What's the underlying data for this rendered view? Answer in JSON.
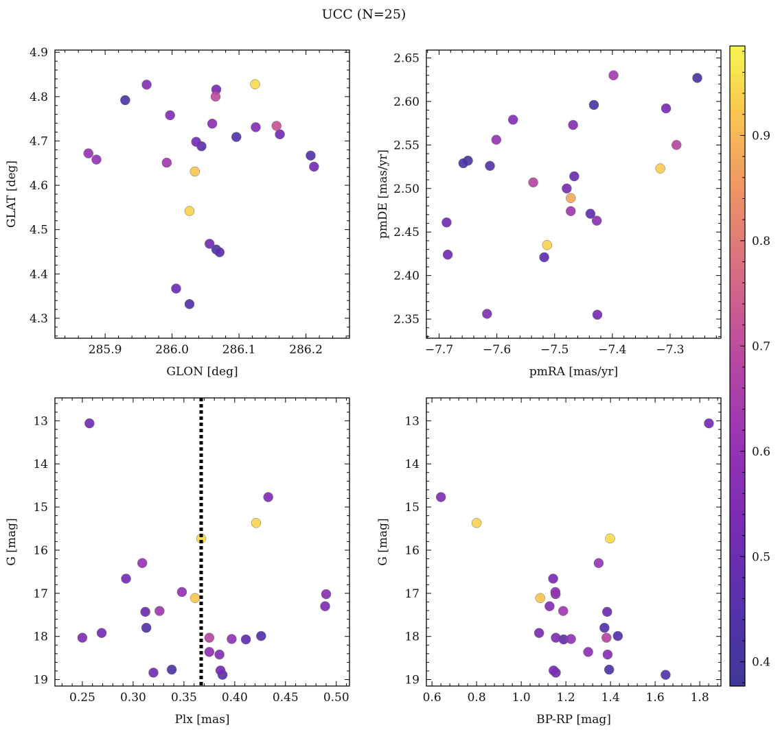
{
  "figure": {
    "title": "UCC (N=25)"
  },
  "colors": {
    "viridis_like": "plasma",
    "marker_edge": "#555555"
  },
  "chart_data": [
    {
      "type": "scatter",
      "id": "glon-glat",
      "xlabel": "GLON [deg]",
      "ylabel": "GLAT [deg]",
      "xlim": [
        285.825,
        286.265
      ],
      "ylim": [
        4.255,
        4.905
      ],
      "xticks": [
        285.9,
        286.0,
        286.1,
        286.2
      ],
      "xtick_labels": [
        "285.9",
        "286.0",
        "286.1",
        "286.2"
      ],
      "yticks": [
        4.3,
        4.4,
        4.5,
        4.6,
        4.7,
        4.8,
        4.9
      ],
      "ytick_labels": [
        "4.3",
        "4.4",
        "4.5",
        "4.6",
        "4.7",
        "4.8",
        "4.9"
      ],
      "y_inverted": false,
      "points": [
        {
          "x": 285.93,
          "y": 4.792,
          "c": 0.42
        },
        {
          "x": 285.962,
          "y": 4.827,
          "c": 0.56
        },
        {
          "x": 285.875,
          "y": 4.672,
          "c": 0.61
        },
        {
          "x": 285.887,
          "y": 4.658,
          "c": 0.61
        },
        {
          "x": 285.997,
          "y": 4.758,
          "c": 0.56
        },
        {
          "x": 285.992,
          "y": 4.651,
          "c": 0.63
        },
        {
          "x": 286.036,
          "y": 4.698,
          "c": 0.52
        },
        {
          "x": 286.044,
          "y": 4.688,
          "c": 0.47
        },
        {
          "x": 286.06,
          "y": 4.739,
          "c": 0.58
        },
        {
          "x": 286.066,
          "y": 4.816,
          "c": 0.53
        },
        {
          "x": 286.065,
          "y": 4.8,
          "c": 0.7
        },
        {
          "x": 286.124,
          "y": 4.828,
          "c": 0.95
        },
        {
          "x": 286.096,
          "y": 4.709,
          "c": 0.44
        },
        {
          "x": 286.125,
          "y": 4.731,
          "c": 0.56
        },
        {
          "x": 286.156,
          "y": 4.734,
          "c": 0.72
        },
        {
          "x": 286.161,
          "y": 4.715,
          "c": 0.52
        },
        {
          "x": 286.207,
          "y": 4.667,
          "c": 0.44
        },
        {
          "x": 286.212,
          "y": 4.642,
          "c": 0.52
        },
        {
          "x": 286.034,
          "y": 4.631,
          "c": 0.92
        },
        {
          "x": 286.026,
          "y": 4.542,
          "c": 0.94
        },
        {
          "x": 286.056,
          "y": 4.468,
          "c": 0.52
        },
        {
          "x": 286.066,
          "y": 4.455,
          "c": 0.42
        },
        {
          "x": 286.071,
          "y": 4.449,
          "c": 0.47
        },
        {
          "x": 286.006,
          "y": 4.367,
          "c": 0.5
        },
        {
          "x": 286.026,
          "y": 4.332,
          "c": 0.44
        }
      ]
    },
    {
      "type": "scatter",
      "id": "pmra-pmde",
      "xlabel": "pmRA [mas/yr]",
      "ylabel": "pmDE [mas/yr]",
      "xlim": [
        -7.722,
        -7.212
      ],
      "ylim": [
        2.328,
        2.659
      ],
      "xticks": [
        -7.7,
        -7.6,
        -7.5,
        -7.4,
        -7.3
      ],
      "xtick_labels": [
        "−7.7",
        "−7.6",
        "−7.5",
        "−7.4",
        "−7.3"
      ],
      "yticks": [
        2.35,
        2.4,
        2.45,
        2.5,
        2.55,
        2.6,
        2.65
      ],
      "ytick_labels": [
        "2.35",
        "2.40",
        "2.45",
        "2.50",
        "2.55",
        "2.60",
        "2.65"
      ],
      "y_inverted": false,
      "points": [
        {
          "x": -7.398,
          "y": 2.63,
          "c": 0.64
        },
        {
          "x": -7.253,
          "y": 2.627,
          "c": 0.42
        },
        {
          "x": -7.432,
          "y": 2.596,
          "c": 0.42
        },
        {
          "x": -7.307,
          "y": 2.592,
          "c": 0.53
        },
        {
          "x": -7.572,
          "y": 2.579,
          "c": 0.56
        },
        {
          "x": -7.468,
          "y": 2.573,
          "c": 0.56
        },
        {
          "x": -7.601,
          "y": 2.556,
          "c": 0.61
        },
        {
          "x": -7.289,
          "y": 2.55,
          "c": 0.68
        },
        {
          "x": -7.65,
          "y": 2.532,
          "c": 0.42
        },
        {
          "x": -7.658,
          "y": 2.529,
          "c": 0.42
        },
        {
          "x": -7.612,
          "y": 2.526,
          "c": 0.44
        },
        {
          "x": -7.317,
          "y": 2.523,
          "c": 0.93
        },
        {
          "x": -7.466,
          "y": 2.514,
          "c": 0.5
        },
        {
          "x": -7.537,
          "y": 2.507,
          "c": 0.68
        },
        {
          "x": -7.479,
          "y": 2.5,
          "c": 0.53
        },
        {
          "x": -7.472,
          "y": 2.489,
          "c": 0.88
        },
        {
          "x": -7.472,
          "y": 2.474,
          "c": 0.63
        },
        {
          "x": -7.438,
          "y": 2.471,
          "c": 0.47
        },
        {
          "x": -7.427,
          "y": 2.463,
          "c": 0.58
        },
        {
          "x": -7.687,
          "y": 2.461,
          "c": 0.52
        },
        {
          "x": -7.513,
          "y": 2.435,
          "c": 0.94
        },
        {
          "x": -7.685,
          "y": 2.424,
          "c": 0.52
        },
        {
          "x": -7.518,
          "y": 2.421,
          "c": 0.47
        },
        {
          "x": -7.617,
          "y": 2.356,
          "c": 0.56
        },
        {
          "x": -7.426,
          "y": 2.355,
          "c": 0.53
        }
      ]
    },
    {
      "type": "scatter",
      "id": "plx-g",
      "xlabel": "Plx [mas]",
      "ylabel": "G [mag]",
      "xlim": [
        0.223,
        0.513
      ],
      "ylim": [
        12.47,
        19.15
      ],
      "xticks": [
        0.25,
        0.3,
        0.35,
        0.4,
        0.45,
        0.5
      ],
      "xtick_labels": [
        "0.25",
        "0.30",
        "0.35",
        "0.40",
        "0.45",
        "0.50"
      ],
      "yticks": [
        13,
        14,
        15,
        16,
        17,
        18,
        19
      ],
      "ytick_labels": [
        "13",
        "14",
        "15",
        "16",
        "17",
        "18",
        "19"
      ],
      "y_inverted": true,
      "vline": {
        "x": 0.367,
        "style": "dotted"
      },
      "points": [
        {
          "x": 0.257,
          "y": 13.06,
          "c": 0.52
        },
        {
          "x": 0.433,
          "y": 14.77,
          "c": 0.55
        },
        {
          "x": 0.421,
          "y": 15.37,
          "c": 0.94
        },
        {
          "x": 0.367,
          "y": 15.73,
          "c": 0.95
        },
        {
          "x": 0.309,
          "y": 16.3,
          "c": 0.61
        },
        {
          "x": 0.293,
          "y": 16.66,
          "c": 0.53
        },
        {
          "x": 0.348,
          "y": 16.97,
          "c": 0.6
        },
        {
          "x": 0.361,
          "y": 17.11,
          "c": 0.92
        },
        {
          "x": 0.49,
          "y": 17.02,
          "c": 0.58
        },
        {
          "x": 0.489,
          "y": 17.3,
          "c": 0.55
        },
        {
          "x": 0.312,
          "y": 17.43,
          "c": 0.5
        },
        {
          "x": 0.326,
          "y": 17.41,
          "c": 0.63
        },
        {
          "x": 0.313,
          "y": 17.8,
          "c": 0.44
        },
        {
          "x": 0.269,
          "y": 17.92,
          "c": 0.53
        },
        {
          "x": 0.25,
          "y": 18.03,
          "c": 0.55
        },
        {
          "x": 0.375,
          "y": 18.03,
          "c": 0.68
        },
        {
          "x": 0.397,
          "y": 18.06,
          "c": 0.6
        },
        {
          "x": 0.411,
          "y": 18.07,
          "c": 0.47
        },
        {
          "x": 0.426,
          "y": 17.99,
          "c": 0.44
        },
        {
          "x": 0.375,
          "y": 18.36,
          "c": 0.58
        },
        {
          "x": 0.385,
          "y": 18.42,
          "c": 0.56
        },
        {
          "x": 0.386,
          "y": 18.79,
          "c": 0.53
        },
        {
          "x": 0.388,
          "y": 18.89,
          "c": 0.44
        },
        {
          "x": 0.338,
          "y": 18.77,
          "c": 0.42
        },
        {
          "x": 0.32,
          "y": 18.84,
          "c": 0.52
        }
      ]
    },
    {
      "type": "scatter",
      "id": "bprp-g",
      "xlabel": "BP-RP [mag]",
      "ylabel": "G [mag]",
      "xlim": [
        0.575,
        1.895
      ],
      "ylim": [
        12.47,
        19.15
      ],
      "xticks": [
        0.6,
        0.8,
        1.0,
        1.2,
        1.4,
        1.6,
        1.8
      ],
      "xtick_labels": [
        "0.6",
        "0.8",
        "1.0",
        "1.2",
        "1.4",
        "1.6",
        "1.8"
      ],
      "yticks": [
        13,
        14,
        15,
        16,
        17,
        18,
        19
      ],
      "ytick_labels": [
        "13",
        "14",
        "15",
        "16",
        "17",
        "18",
        "19"
      ],
      "y_inverted": true,
      "points": [
        {
          "x": 1.841,
          "y": 13.06,
          "c": 0.52
        },
        {
          "x": 0.64,
          "y": 14.77,
          "c": 0.55
        },
        {
          "x": 0.8,
          "y": 15.37,
          "c": 0.94
        },
        {
          "x": 1.398,
          "y": 15.73,
          "c": 0.95
        },
        {
          "x": 1.347,
          "y": 16.3,
          "c": 0.61
        },
        {
          "x": 1.143,
          "y": 16.66,
          "c": 0.53
        },
        {
          "x": 1.153,
          "y": 16.97,
          "c": 0.6
        },
        {
          "x": 1.154,
          "y": 17.02,
          "c": 0.58
        },
        {
          "x": 1.085,
          "y": 17.11,
          "c": 0.92
        },
        {
          "x": 1.127,
          "y": 17.3,
          "c": 0.55
        },
        {
          "x": 1.188,
          "y": 17.41,
          "c": 0.63
        },
        {
          "x": 1.385,
          "y": 17.43,
          "c": 0.5
        },
        {
          "x": 1.373,
          "y": 17.8,
          "c": 0.44
        },
        {
          "x": 1.08,
          "y": 17.92,
          "c": 0.53
        },
        {
          "x": 1.433,
          "y": 17.99,
          "c": 0.44
        },
        {
          "x": 1.155,
          "y": 18.03,
          "c": 0.55
        },
        {
          "x": 1.382,
          "y": 18.03,
          "c": 0.68
        },
        {
          "x": 1.223,
          "y": 18.06,
          "c": 0.6
        },
        {
          "x": 1.19,
          "y": 18.07,
          "c": 0.47
        },
        {
          "x": 1.3,
          "y": 18.36,
          "c": 0.58
        },
        {
          "x": 1.387,
          "y": 18.42,
          "c": 0.56
        },
        {
          "x": 1.145,
          "y": 18.79,
          "c": 0.53
        },
        {
          "x": 1.394,
          "y": 18.77,
          "c": 0.42
        },
        {
          "x": 1.155,
          "y": 18.84,
          "c": 0.52
        },
        {
          "x": 1.647,
          "y": 18.89,
          "c": 0.44
        }
      ]
    }
  ],
  "colorbar": {
    "cmap": "plasma",
    "vmin": 0.377,
    "vmax": 0.985,
    "ticks": [
      0.4,
      0.5,
      0.6,
      0.7,
      0.8,
      0.9
    ],
    "tick_labels": [
      "0.4",
      "0.5",
      "0.6",
      "0.7",
      "0.8",
      "0.9"
    ]
  }
}
